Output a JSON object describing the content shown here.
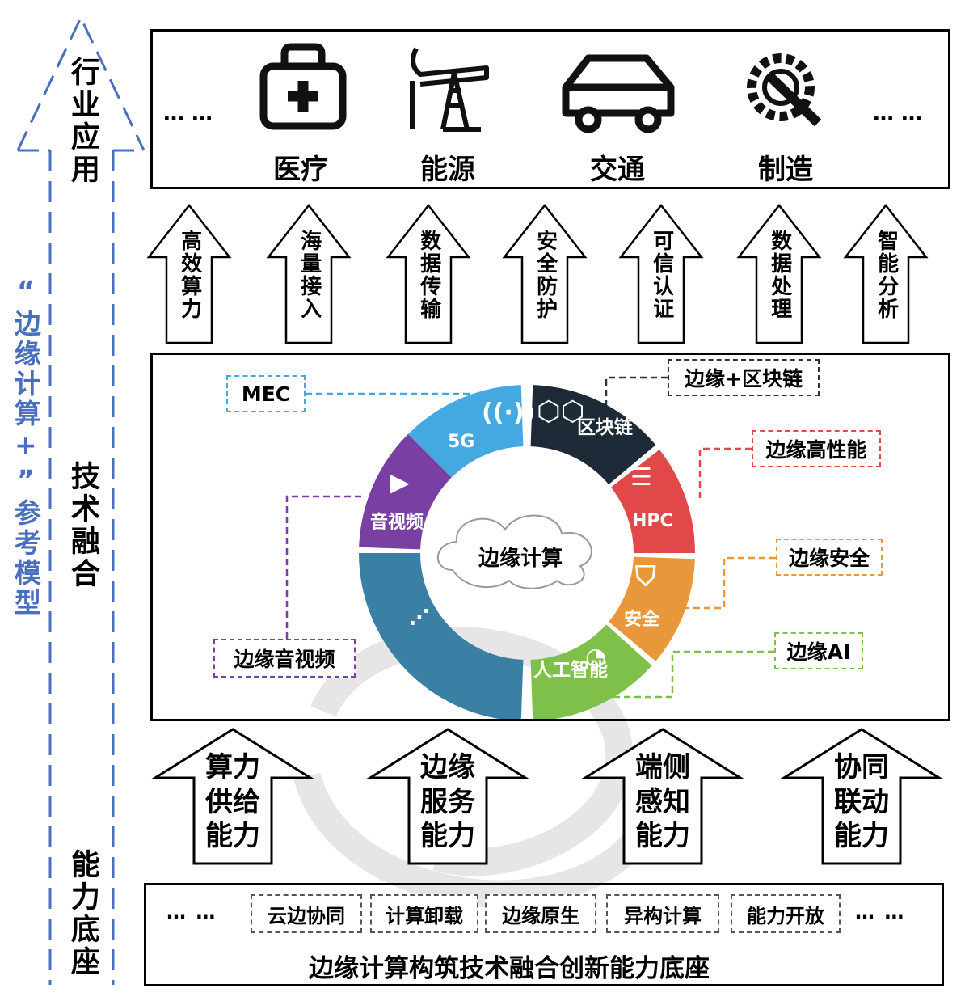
{
  "side": {
    "model_label": "“边缘计算+”参考模型",
    "layer_top": "行业应用",
    "layer_mid": "技术融合",
    "layer_bottom": "能力底座"
  },
  "industries": {
    "ellipsis_left": "… …",
    "ellipsis_right": "… …",
    "items": [
      {
        "label": "医疗",
        "icon": "medical-kit-icon"
      },
      {
        "label": "能源",
        "icon": "oil-pump-icon"
      },
      {
        "label": "交通",
        "icon": "car-icon"
      },
      {
        "label": "制造",
        "icon": "gear-wrench-icon"
      }
    ]
  },
  "up_arrows": [
    "高效算力",
    "海量接入",
    "数据传输",
    "安全防护",
    "可信认证",
    "数据处理",
    "智能分析"
  ],
  "ring": {
    "center": "边缘计算",
    "segments": [
      {
        "label": "5G",
        "color": "#45a9e1",
        "icon": "signal-tower-icon"
      },
      {
        "label": "区块链",
        "color": "#1e2a38",
        "icon": "hexagon-chain-icon"
      },
      {
        "label": "HPC",
        "color": "#e0484a",
        "icon": "server-stack-icon"
      },
      {
        "label": "安全",
        "color": "#e8973a",
        "icon": "shield-check-icon"
      },
      {
        "label": "人工智能",
        "color": "#7fc04a",
        "icon": "ai-head-icon"
      },
      {
        "label": "",
        "color": "#3a7fa4",
        "icon": "dots-icon"
      },
      {
        "label": "音视频",
        "color": "#7a3fa2",
        "icon": "video-camera-icon"
      }
    ]
  },
  "callouts": {
    "mec": {
      "label": "MEC",
      "color": "#45a9e1"
    },
    "blockchain": {
      "label": "边缘+区块链",
      "color": "#2a3340"
    },
    "hpc": {
      "label": "边缘高性能",
      "color": "#e0484a"
    },
    "security": {
      "label": "边缘安全",
      "color": "#e8973a"
    },
    "ai": {
      "label": "边缘AI",
      "color": "#7fc04a"
    },
    "av": {
      "label": "边缘音视频",
      "color": "#7a3fa2"
    }
  },
  "big_arrows": [
    "算力供给能力",
    "边缘服务能力",
    "端侧感知能力",
    "协同联动能力"
  ],
  "foundation": {
    "ellipsis_left": "… …",
    "ellipsis_right": "… …",
    "capabilities": [
      "云边协同",
      "计算卸载",
      "边缘原生",
      "异构计算",
      "能力开放"
    ],
    "title": "边缘计算构筑技术融合创新能力底座"
  },
  "colors": {
    "accent_blue": "#4a6fc0",
    "frame": "#000000"
  }
}
